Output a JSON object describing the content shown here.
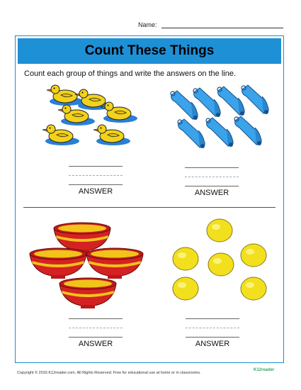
{
  "header": {
    "name_label": "Name:"
  },
  "title": "Count These Things",
  "instruction": "Count each group of things and write the answers on the line.",
  "groups": [
    {
      "item": "ducks",
      "count": 6,
      "answer_label": "ANSWER"
    },
    {
      "item": "bells",
      "count": 7,
      "answer_label": "ANSWER"
    },
    {
      "item": "bowls",
      "count": 4,
      "answer_label": "ANSWER"
    },
    {
      "item": "lemons",
      "count": 6,
      "answer_label": "ANSWER"
    }
  ],
  "footer": "Copyright © 2016 K12reader.com. All Rights Reserved. Free for educational use at home or in classrooms.",
  "brand": "K12reader",
  "colors": {
    "title_bar": "#1e90d6",
    "frame": "#1c8bd1",
    "divider": "#1e5aa8"
  }
}
